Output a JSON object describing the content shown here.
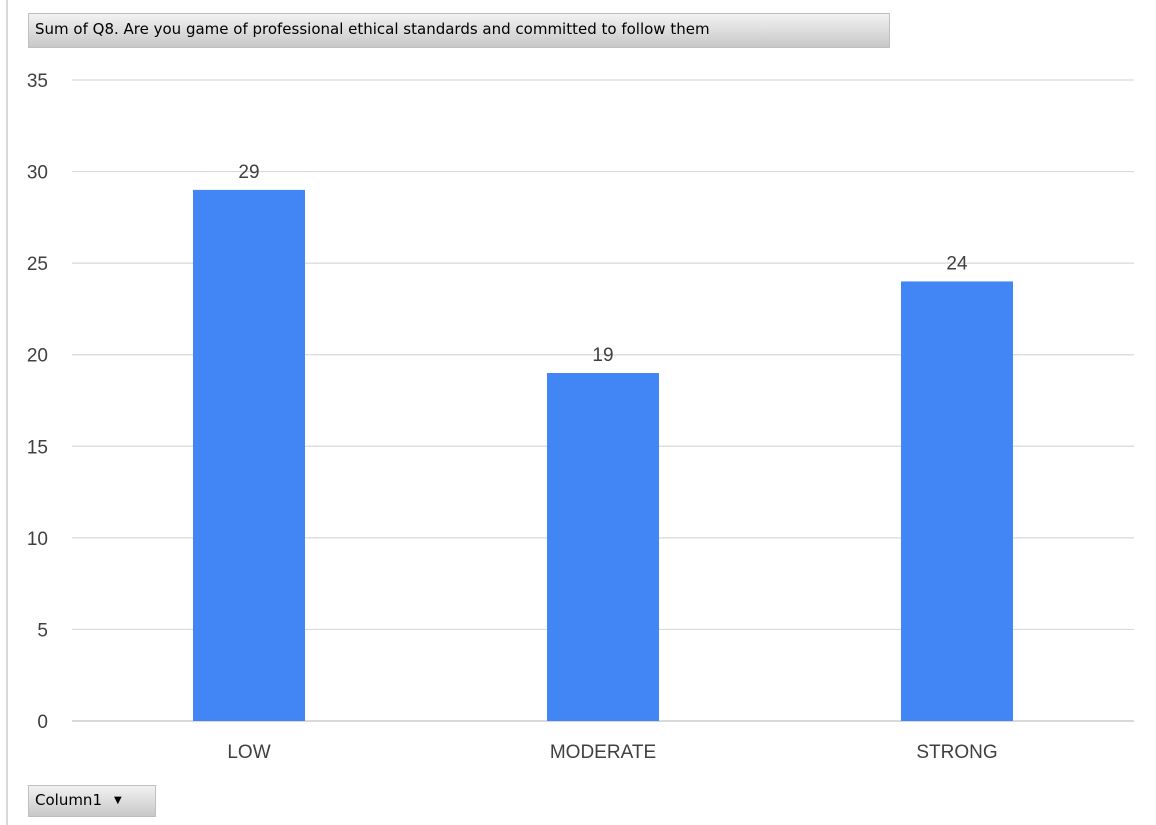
{
  "title_button": "Sum of Q8. Are you game of professional ethical standards and committed to follow them",
  "column_button": {
    "label": "Column1",
    "arrow_icon": "dropdown-arrow-icon"
  },
  "colors": {
    "bar": "#4285f4",
    "grid": "#d9d9d9",
    "text": "#404040"
  },
  "chart_data": {
    "type": "bar",
    "categories": [
      "LOW",
      "MODERATE",
      "STRONG"
    ],
    "values": [
      29,
      19,
      24
    ],
    "data_labels": [
      "29",
      "19",
      "24"
    ],
    "ylim": [
      0,
      35
    ],
    "yticks": [
      0,
      5,
      10,
      15,
      20,
      25,
      30,
      35
    ],
    "grid": true,
    "legend": "none",
    "xlabel": "",
    "ylabel": ""
  }
}
